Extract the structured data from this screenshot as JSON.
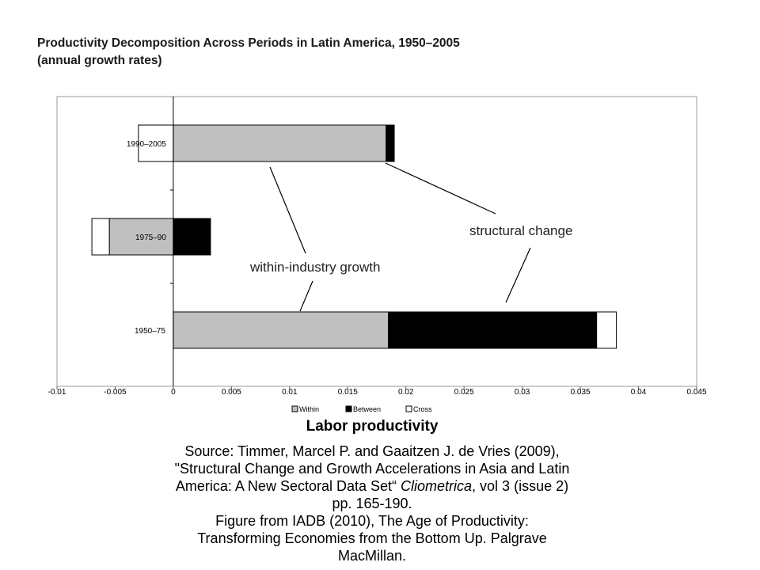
{
  "chart_title": {
    "line1": "Productivity Decomposition Across Periods in Latin America, 1950–2005",
    "line2": "(annual growth rates)"
  },
  "chart_data": {
    "type": "bar",
    "orientation": "horizontal",
    "stacked": true,
    "categories": [
      "1990–2005",
      "1975–90",
      "1950–75"
    ],
    "series": [
      {
        "name": "Within",
        "values": [
          0.0183,
          -0.0055,
          0.0185
        ],
        "color": "#c0c0c0"
      },
      {
        "name": "Between",
        "values": [
          0.0007,
          0.0032,
          0.0179
        ],
        "color": "#000000"
      },
      {
        "name": "Cross",
        "values": [
          -0.003,
          -0.0015,
          0.0017
        ],
        "color": "#ffffff"
      }
    ],
    "xlim": [
      -0.01,
      0.045
    ],
    "xticks": [
      "-0.01",
      "-0.005",
      "0",
      "0.005",
      "0.01",
      "0.015",
      "0.02",
      "0.025",
      "0.03",
      "0.035",
      "0.04",
      "0.045"
    ],
    "xlabel": "",
    "ylabel": "",
    "grid": false,
    "legend_position": "bottom",
    "annotations": [
      "within-industry growth",
      "structural change"
    ]
  },
  "caption": {
    "title": "Labor productivity",
    "line1": "Source: Timmer, Marcel P. and Gaaitzen J. de Vries (2009),",
    "line2": "\"Structural Change and Growth Accelerations in Asia and Latin",
    "line3_pre": "America: A New Sectoral Data Set“ ",
    "line3_journal": "Cliometrica",
    "line3_post": ", vol 3 (issue 2)",
    "line4": "pp. 165-190.",
    "line5": "Figure from IADB (2010), The Age of Productivity:",
    "line6": "Transforming Economies from the Bottom Up. Palgrave",
    "line7": "MacMillan."
  }
}
